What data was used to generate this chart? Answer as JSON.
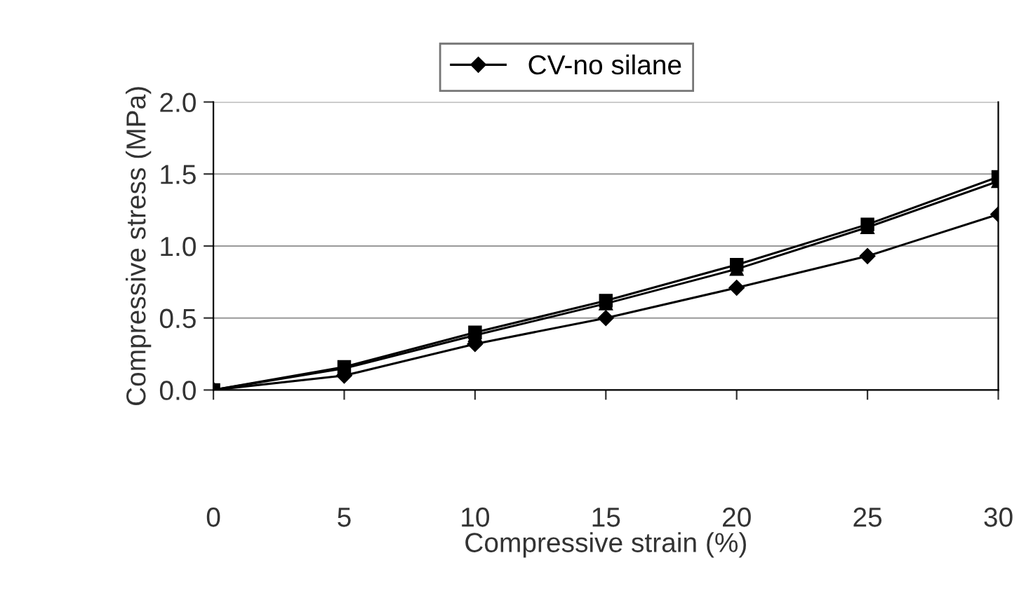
{
  "chart_data": {
    "type": "line",
    "xlabel": "Compressive strain (%)",
    "ylabel": "Compressive stress (MPa)",
    "x": [
      0,
      5,
      10,
      15,
      20,
      25,
      30
    ],
    "series": [
      {
        "name": "CV-no silane",
        "color": "#000000",
        "marker": "diamond",
        "values": [
          0,
          0.1,
          0.32,
          0.5,
          0.71,
          0.93,
          1.22
        ]
      },
      {
        "color": "#000000",
        "marker": "square",
        "values": [
          0,
          0.16,
          0.4,
          0.62,
          0.87,
          1.15,
          1.48
        ]
      },
      {
        "color": "#000000",
        "marker": "triangle",
        "values": [
          0,
          0.15,
          0.38,
          0.6,
          0.84,
          1.13,
          1.45
        ]
      }
    ],
    "xlim": [
      0,
      30
    ],
    "xticks": [
      0,
      5,
      10,
      15,
      20,
      25,
      30
    ],
    "ylim": [
      0,
      2.0
    ],
    "yticks": [
      {
        "value": 0,
        "label": "0.0"
      },
      {
        "value": 0.5,
        "label": "0.5"
      },
      {
        "value": 1.0,
        "label": "1.0"
      },
      {
        "value": 1.5,
        "label": "1.5"
      },
      {
        "value": 2.0,
        "label": "2.0"
      }
    ],
    "grid": "y",
    "legend": "top",
    "line_style": "solid"
  }
}
